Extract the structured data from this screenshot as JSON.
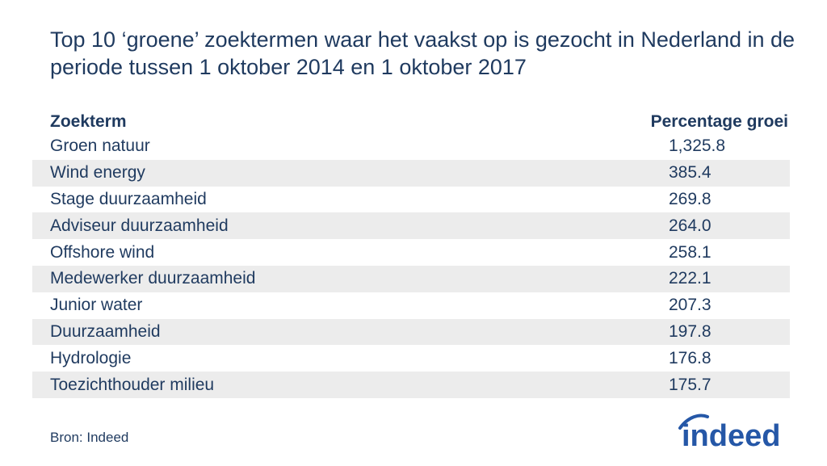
{
  "title": "Top 10 ‘groene’ zoektermen waar het vaakst op is gezocht in Nederland in de periode tussen 1 oktober 2014 en 1 oktober 2017",
  "chart_data": {
    "type": "table",
    "columns": [
      "Zoekterm",
      "Percentage groei"
    ],
    "rows": [
      {
        "term": "Groen natuur",
        "value": "1,325.8"
      },
      {
        "term": "Wind energy",
        "value": "385.4"
      },
      {
        "term": "Stage duurzaamheid",
        "value": "269.8"
      },
      {
        "term": "Adviseur duurzaamheid",
        "value": "264.0"
      },
      {
        "term": "Offshore wind",
        "value": "258.1"
      },
      {
        "term": "Medewerker duurzaamheid",
        "value": "222.1"
      },
      {
        "term": "Junior water",
        "value": "207.3"
      },
      {
        "term": "Duurzaamheid",
        "value": "197.8"
      },
      {
        "term": "Hydrologie",
        "value": "176.8"
      },
      {
        "term": "Toezichthouder milieu",
        "value": "175.7"
      }
    ]
  },
  "source": "Bron: Indeed",
  "logo_text": "indeed",
  "colors": {
    "text": "#1f3a5f",
    "stripe": "#ececec",
    "logo": "#2557a7"
  }
}
